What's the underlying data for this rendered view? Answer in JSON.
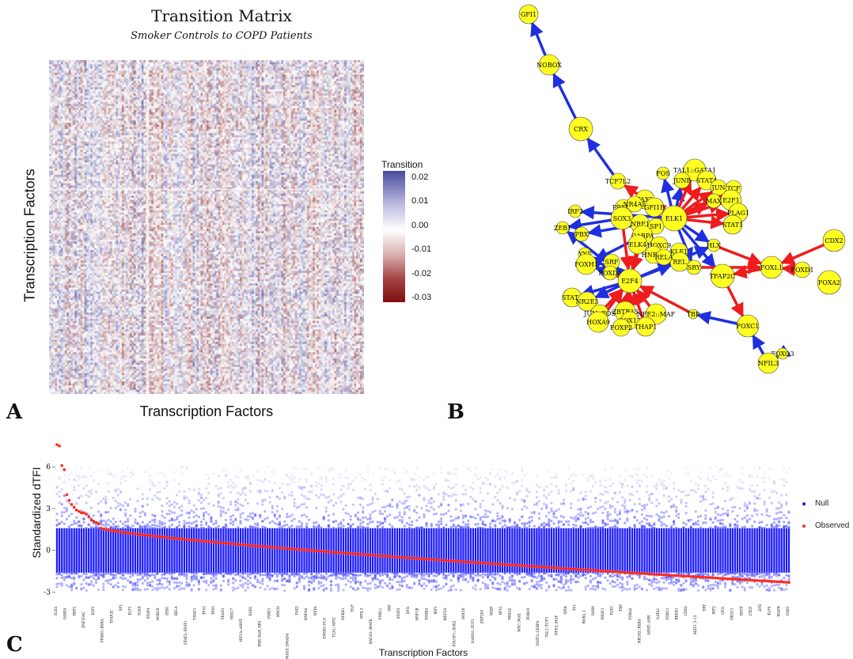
{
  "panel_letters": {
    "a": "A",
    "b": "B",
    "c": "C"
  },
  "chart_data": [
    {
      "type": "heatmap",
      "title": "Transition Matrix",
      "subtitle": "Smoker Controls to COPD Patients",
      "xlabel": "Transcription Factors",
      "ylabel": "Transcription Factors",
      "legend": {
        "title": "Transition",
        "ticks": [
          "0.02",
          "0.01",
          "0.00",
          "-0.01",
          "-0.02",
          "-0.03"
        ],
        "range": [
          -0.03,
          0.025
        ],
        "colors": {
          "high": "#4a4a9e",
          "mid": "#ffffff",
          "low": "#7f0f0f"
        }
      },
      "grid_size": 160
    },
    {
      "type": "network",
      "node_color": "#ffff22",
      "edge_colors": {
        "positive": "#1f2fe0",
        "negative": "#ee1c1c"
      },
      "nodes": [
        {
          "id": "GFI1",
          "label": "GFI1"
        },
        {
          "id": "NOBOX",
          "label": "NOBOX"
        },
        {
          "id": "CRX",
          "label": "CRX"
        },
        {
          "id": "TCF7L2",
          "label": "TCF7L2"
        },
        {
          "id": "FOS",
          "label": "FOS"
        },
        {
          "id": "TAL1GATA1",
          "label": "TAL1::GATA1"
        },
        {
          "id": "JUNB",
          "label": "JUNB"
        },
        {
          "id": "STAT4",
          "label": "STAT4"
        },
        {
          "id": "JUN",
          "label": "JUN"
        },
        {
          "id": "TCF",
          "label": "TCF"
        },
        {
          "id": "MAX",
          "label": "MAX"
        },
        {
          "id": "E2F1",
          "label": "E2F1"
        },
        {
          "id": "PLAG1",
          "label": "PLAG1"
        },
        {
          "id": "STAT1",
          "label": "STAT1"
        },
        {
          "id": "PAX2",
          "label": "PAX2"
        },
        {
          "id": "PPARG",
          "label": "PPARG"
        },
        {
          "id": "NR4A1",
          "label": "NR4A1"
        },
        {
          "id": "GFI1B",
          "label": "GFI1B"
        },
        {
          "id": "ELK1",
          "label": "ELK1"
        },
        {
          "id": "IRF2",
          "label": "IRF2"
        },
        {
          "id": "SOX3",
          "label": "SOX3"
        },
        {
          "id": "NRF1",
          "label": "NRF1"
        },
        {
          "id": "SP1",
          "label": "SP1"
        },
        {
          "id": "ZEB1",
          "label": "ZEB1"
        },
        {
          "id": "PBX",
          "label": "PBX"
        },
        {
          "id": "GABPA",
          "label": "GABPA"
        },
        {
          "id": "ELK4",
          "label": "ELK4"
        },
        {
          "id": "HOXC9",
          "label": "HOXC9"
        },
        {
          "id": "HNF1A",
          "label": "HNF1A"
        },
        {
          "id": "KLF1",
          "label": "KLF1"
        },
        {
          "id": "YY1",
          "label": "YY1"
        },
        {
          "id": "SRF",
          "label": "SRF"
        },
        {
          "id": "REL",
          "label": "REL"
        },
        {
          "id": "RELA",
          "label": "RELA"
        },
        {
          "id": "FOXH1",
          "label": "FOXH1"
        },
        {
          "id": "FOXD3",
          "label": "FOXD3"
        },
        {
          "id": "SRY",
          "label": "SRY"
        },
        {
          "id": "HLX",
          "label": "HLX"
        },
        {
          "id": "FOXL1",
          "label": "FOXL1"
        },
        {
          "id": "CDX2",
          "label": "CDX2"
        },
        {
          "id": "FOXD1",
          "label": "FOXD1"
        },
        {
          "id": "FOXA2",
          "label": "FOXA2"
        },
        {
          "id": "E2F4",
          "label": "E2F4"
        },
        {
          "id": "TFAP2C",
          "label": "TFAP2C"
        },
        {
          "id": "STAT6",
          "label": "STAT6"
        },
        {
          "id": "NR2E3",
          "label": "NR2E3"
        },
        {
          "id": "JUNFOS",
          "label": "JUN::FOS"
        },
        {
          "id": "ZBTB33",
          "label": "ZBTB33"
        },
        {
          "id": "NFE2MAF",
          "label": "NFE2::MAF"
        },
        {
          "id": "HOXA9",
          "label": "HOXA9"
        },
        {
          "id": "SOX17",
          "label": "SOX17"
        },
        {
          "id": "FOXP2",
          "label": "FOXP2"
        },
        {
          "id": "THAP1",
          "label": "THAP1"
        },
        {
          "id": "TBP",
          "label": "TBP"
        },
        {
          "id": "FOXC1",
          "label": "FOXC1"
        },
        {
          "id": "FOXO3",
          "label": "FOXO3"
        },
        {
          "id": "NFIL3",
          "label": "NFIL3"
        }
      ]
    },
    {
      "type": "scatter",
      "ylabel": "Standardized dTFI",
      "xlabel": "Transcription Factors",
      "yticks": [
        6,
        3,
        0,
        -3
      ],
      "ylim": [
        -3.2,
        8
      ],
      "legend": [
        {
          "name": "Null",
          "color": "#1a1aff"
        },
        {
          "name": "Observed",
          "color": "#ff2a1a"
        }
      ],
      "observed_sorted_first": [
        7.6,
        7.5,
        6.1,
        5.8,
        4.0,
        3.6,
        3.3,
        3.1,
        2.9,
        2.8,
        2.7,
        2.7,
        2.6,
        2.4,
        2.2,
        2.1,
        2.0,
        1.9
      ],
      "observed_min": -2.3,
      "categories": [
        "ELK1",
        "GABPA",
        "NRF1",
        "ZNF354C",
        "E2F1",
        "PPARG::RXRA",
        "TFAP2C",
        "SP1",
        "KLF1",
        "ELK4",
        "STAT4",
        "HOXC9",
        "ZEB1",
        "RELA",
        "STAT2::STAT1",
        "THAP1",
        "TP53",
        "TP63",
        "TEAD1",
        "SOX17",
        "HIF1A::ARNT",
        "EGR1",
        "RXR::RAR_DR5",
        "FOXI1",
        "MYCN",
        "SMAD2::SMAD3::SMAD4",
        "PAX2",
        "HNF4A",
        "NFYA",
        "EWSR1-FLI1",
        "TLX1::NFIC",
        "NFKB1",
        "HLF",
        "NFIL3",
        "BACH1::MAFK",
        "FOXL1",
        "SRF",
        "STAT3",
        "SPI1",
        "HNF1B",
        "ESRRA",
        "IRF1",
        "MEF2A",
        "POU5F1::SOX2",
        "SOX10",
        "HAND1::TCF3",
        "ZNF263",
        "MIZF",
        "NFIC",
        "NR4A2",
        "MYC::MAX",
        "FOXO3",
        "DDIT3::CEBPA",
        "TAL1::TCF3",
        "NFE2::MAF",
        "SPIB",
        "YY1",
        "RORA_1",
        "SOX9",
        "NR2F1",
        "PAX5",
        "TBP",
        "FOXA2",
        "NR1H2::RXRA",
        "ARNT::AHR",
        "GATA1",
        "FOXC1",
        "RREB1",
        "CDX2",
        "MZF1_5-13",
        "SRY",
        "IRF2",
        "GFI1",
        "NR3C1",
        "REST",
        "CTCF",
        "ZFX",
        "KLF4",
        "MAFB",
        "ESR1"
      ]
    }
  ]
}
